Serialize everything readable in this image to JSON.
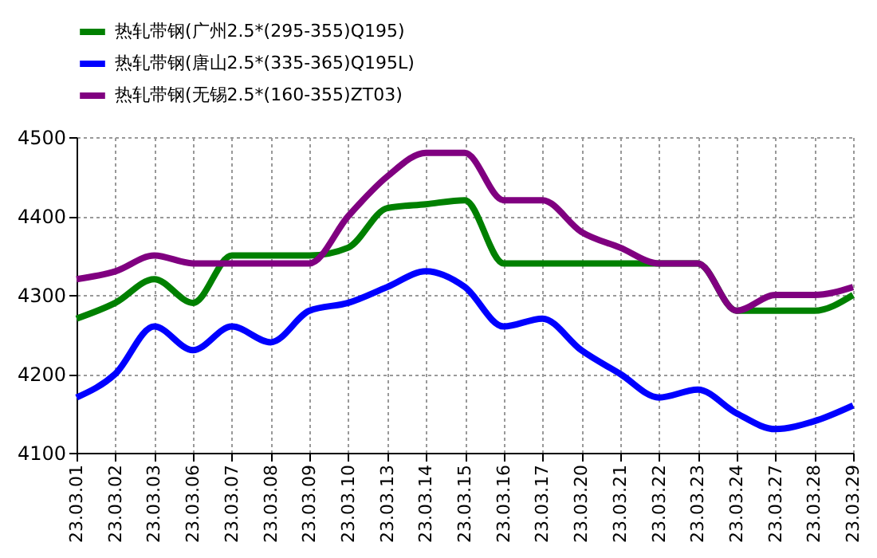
{
  "chart_data": {
    "type": "line",
    "categories": [
      "23.03.01",
      "23.03.02",
      "23.03.03",
      "23.03.06",
      "23.03.07",
      "23.03.08",
      "23.03.09",
      "23.03.10",
      "23.03.13",
      "23.03.14",
      "23.03.15",
      "23.03.16",
      "23.03.17",
      "23.03.20",
      "23.03.21",
      "23.03.22",
      "23.03.23",
      "23.03.24",
      "23.03.27",
      "23.03.28",
      "23.03.29"
    ],
    "series": [
      {
        "name": "热轧带钢(广州2.5*(295-355)Q195)",
        "color": "#008000",
        "values": [
          4270,
          4290,
          4320,
          4290,
          4350,
          4350,
          4350,
          4360,
          4410,
          4415,
          4420,
          4340,
          4340,
          4340,
          4340,
          4340,
          4340,
          4280,
          4280,
          4280,
          4300
        ]
      },
      {
        "name": "热轧带钢(唐山2.5*(335-365)Q195L)",
        "color": "#0000ff",
        "values": [
          4170,
          4200,
          4260,
          4230,
          4260,
          4240,
          4280,
          4290,
          4310,
          4330,
          4310,
          4260,
          4270,
          4230,
          4200,
          4170,
          4180,
          4150,
          4130,
          4140,
          4160
        ]
      },
      {
        "name": "热轧带钢(无锡2.5*(160-355)ZT03)",
        "color": "#800080",
        "values": [
          4320,
          4330,
          4350,
          4340,
          4340,
          4340,
          4340,
          4400,
          4450,
          4480,
          4480,
          4420,
          4420,
          4380,
          4360,
          4340,
          4340,
          4280,
          4300,
          4300,
          4310
        ]
      }
    ],
    "ylim": [
      4100,
      4500
    ],
    "yticks": [
      4100,
      4200,
      4300,
      4400,
      4500
    ],
    "grid": true,
    "legend": "top",
    "line_style": "solid",
    "marker": "none"
  }
}
